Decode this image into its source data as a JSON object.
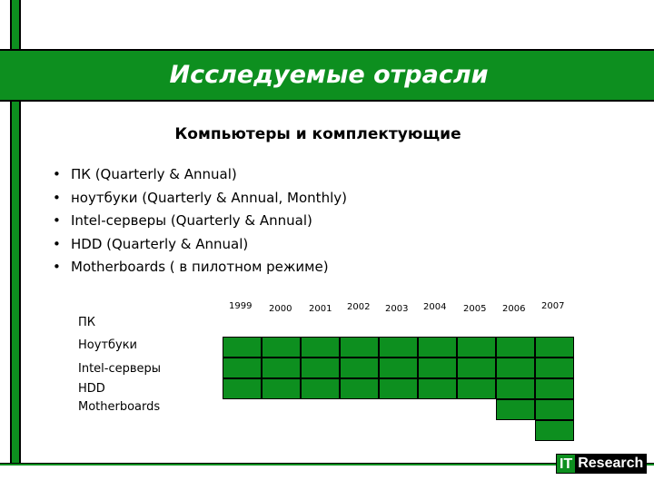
{
  "title": "Исследуемые отрасли",
  "subtitle": "Компьютеры и комплектующие",
  "bullets": [
    "ПК (Quarterly & Annual)",
    "ноутбуки (Quarterly & Annual, Monthly)",
    "Intel-серверы (Quarterly & Annual)",
    "HDD (Quarterly & Annual)",
    "Motherboards ( в пилотном режиме)"
  ],
  "years": [
    "1999",
    "2000",
    "2001",
    "2002",
    "2003",
    "2004",
    "2005",
    "2006",
    "2007"
  ],
  "rows": [
    {
      "label": "ПК",
      "filled_from_year": "1999"
    },
    {
      "label": "Ноутбуки",
      "filled_from_year": "1999"
    },
    {
      "label": "Intel-серверы",
      "filled_from_year": "1999"
    },
    {
      "label": "HDD",
      "filled_from_year": "2006"
    },
    {
      "label": "Motherboards",
      "filled_from_year": "2007"
    }
  ],
  "logo": {
    "part1": "IT",
    "part2": "Research"
  },
  "colors": {
    "accent": "#0d8f1f",
    "text": "#000000",
    "title_text": "#ffffff"
  }
}
